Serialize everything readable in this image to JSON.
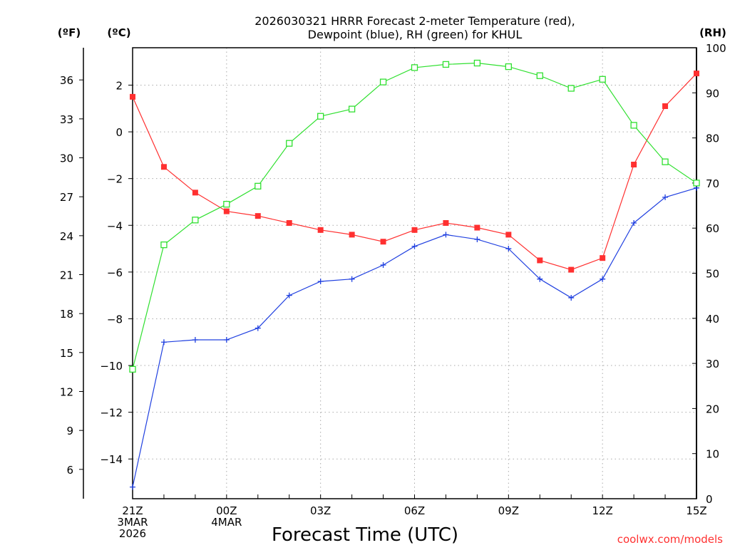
{
  "chart_data": {
    "type": "line",
    "title_line1": "2026030321 HRRR Forecast 2-meter Temperature (red),",
    "title_line2": "Dewpoint (blue), RH (green) for KHUL",
    "xlabel": "Forecast Time (UTC)",
    "watermark": "coolwx.com/models",
    "units": {
      "fahrenheit": "(ºF)",
      "celsius": "(ºC)",
      "rh": "(RH)"
    },
    "hours": [
      0,
      1,
      2,
      3,
      4,
      5,
      6,
      7,
      8,
      9,
      10,
      11,
      12,
      13,
      14,
      15,
      16,
      17,
      18
    ],
    "x_ticks": [
      {
        "hour": 0,
        "lines": [
          "21Z",
          "3MAR",
          "2026"
        ]
      },
      {
        "hour": 3,
        "lines": [
          "00Z",
          "4MAR"
        ]
      },
      {
        "hour": 6,
        "lines": [
          "03Z"
        ]
      },
      {
        "hour": 9,
        "lines": [
          "06Z"
        ]
      },
      {
        "hour": 12,
        "lines": [
          "09Z"
        ]
      },
      {
        "hour": 15,
        "lines": [
          "12Z"
        ]
      },
      {
        "hour": 18,
        "lines": [
          "15Z"
        ]
      }
    ],
    "celsius_axis": {
      "range": [
        -15.7,
        3.6
      ],
      "ticks": [
        2,
        0,
        -2,
        -4,
        -6,
        -8,
        -10,
        -12,
        -14
      ],
      "tick_labels": [
        "2",
        "0",
        "−2",
        "−4",
        "−6",
        "−8",
        "−10",
        "−12",
        "−14"
      ]
    },
    "fahrenheit_ticks": [
      36,
      33,
      30,
      27,
      24,
      21,
      18,
      15,
      12,
      9,
      6
    ],
    "rh_axis": {
      "range": [
        0,
        100
      ],
      "ticks": [
        100,
        90,
        80,
        70,
        60,
        50,
        40,
        30,
        20,
        10,
        0
      ]
    },
    "series": [
      {
        "name": "Temperature",
        "unit": "C",
        "color": "#ff3030",
        "marker": "filled-square",
        "values": [
          1.5,
          -1.5,
          -2.6,
          -3.4,
          -3.6,
          -3.9,
          -4.2,
          -4.4,
          -4.7,
          -4.2,
          -3.9,
          -4.1,
          -4.4,
          -5.5,
          -5.9,
          -5.4,
          -1.4,
          1.1,
          2.5
        ]
      },
      {
        "name": "Dewpoint",
        "unit": "C",
        "color": "#2040e0",
        "marker": "plus",
        "values": [
          -15.2,
          -9.0,
          -8.9,
          -8.9,
          -8.4,
          -7.0,
          -6.4,
          -6.3,
          -5.7,
          -4.9,
          -4.4,
          -4.6,
          -5.0,
          -6.3,
          -7.1,
          -6.3,
          -3.9,
          -2.8,
          -2.4
        ]
      },
      {
        "name": "RH",
        "unit": "%",
        "color": "#30e030",
        "marker": "open-square",
        "values": [
          28.7,
          56.3,
          61.8,
          65.3,
          69.3,
          78.8,
          84.8,
          86.4,
          92.4,
          95.6,
          96.3,
          96.6,
          95.8,
          93.8,
          91.0,
          93.0,
          82.8,
          74.7,
          70.0
        ]
      }
    ]
  }
}
